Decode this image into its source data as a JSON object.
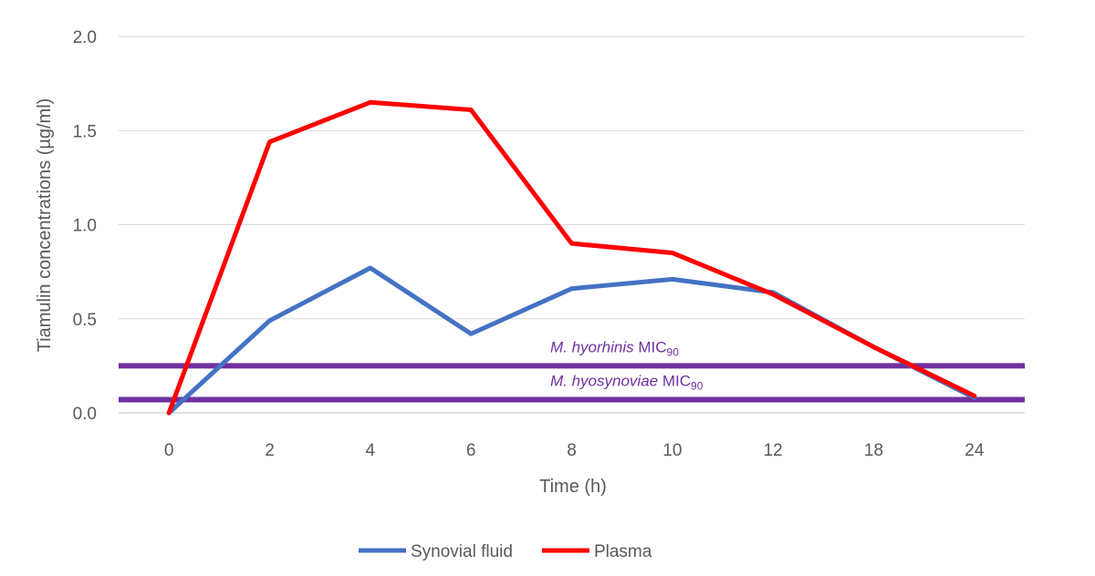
{
  "chart_data": {
    "type": "line",
    "title": "",
    "xlabel": "Time (h)",
    "ylabel": "Tiamulin concentrations (µg/ml)",
    "categories": [
      "0",
      "2",
      "4",
      "6",
      "8",
      "10",
      "12",
      "18",
      "24"
    ],
    "ylim": [
      0,
      2.0
    ],
    "yticks": [
      "0.0",
      "0.5",
      "1.0",
      "1.5",
      "2.0"
    ],
    "grid": true,
    "legend_position": "bottom",
    "series": [
      {
        "name": "Synovial fluid",
        "color": "#4472C4",
        "values": [
          0.0,
          0.49,
          0.77,
          0.42,
          0.66,
          0.71,
          0.64,
          0.35,
          0.08
        ]
      },
      {
        "name": "Plasma",
        "color": "#FF0000",
        "values": [
          0.0,
          1.44,
          1.65,
          1.61,
          0.9,
          0.85,
          0.63,
          0.35,
          0.09
        ]
      }
    ],
    "reference_lines": [
      {
        "species": "M. hyorhinis",
        "suffix": "MIC",
        "subscript": "90",
        "value": 0.25,
        "color": "#7030A0"
      },
      {
        "species": "M. hyosynoviae",
        "suffix": "MIC",
        "subscript": "90",
        "value": 0.07,
        "color": "#7030A0"
      }
    ]
  }
}
